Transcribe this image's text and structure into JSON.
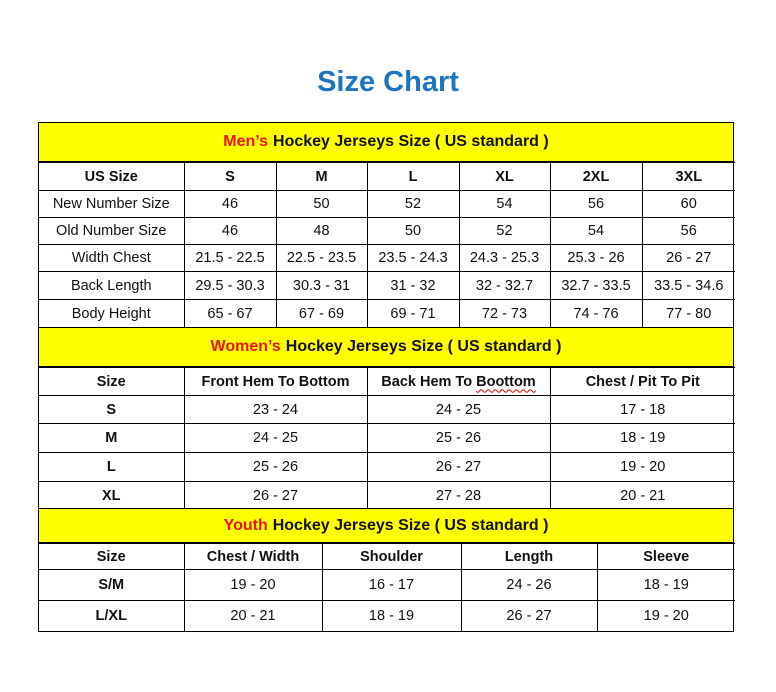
{
  "title": "Size Chart",
  "colors": {
    "title": "#1f74bf",
    "header_bg": "#ffff00",
    "accent": "#e8141b"
  },
  "men": {
    "accent": "Men’s",
    "heading": "Hockey Jerseys Size ( US standard )",
    "columns": [
      "US Size",
      "S",
      "M",
      "L",
      "XL",
      "2XL",
      "3XL"
    ],
    "rows": [
      [
        "New Number Size",
        "46",
        "50",
        "52",
        "54",
        "56",
        "60"
      ],
      [
        "Old Number Size",
        "46",
        "48",
        "50",
        "52",
        "54",
        "56"
      ],
      [
        "Width Chest",
        "21.5 - 22.5",
        "22.5 - 23.5",
        "23.5 - 24.3",
        "24.3 - 25.3",
        "25.3 - 26",
        "26 - 27"
      ],
      [
        "Back Length",
        "29.5 - 30.3",
        "30.3 - 31",
        "31 - 32",
        "32 - 32.7",
        "32.7 - 33.5",
        "33.5 - 34.6"
      ],
      [
        "Body Height",
        "65 - 67",
        "67 - 69",
        "69 - 71",
        "72 - 73",
        "74 - 76",
        "77 - 80"
      ]
    ]
  },
  "women": {
    "accent": "Women’s",
    "heading": "Hockey Jerseys Size ( US standard )",
    "columns": [
      "Size",
      "Front Hem To Bottom",
      "Back Hem To Boottom",
      "Chest / Pit To Pit"
    ],
    "rows": [
      [
        "S",
        "23 - 24",
        "24 - 25",
        "17 - 18"
      ],
      [
        "M",
        "24 - 25",
        "25 - 26",
        "18 - 19"
      ],
      [
        "L",
        "25 - 26",
        "26 - 27",
        "19 - 20"
      ],
      [
        "XL",
        "26 - 27",
        "27 - 28",
        "20 - 21"
      ]
    ]
  },
  "youth": {
    "accent": "Youth",
    "heading": "Hockey Jerseys Size ( US standard )",
    "columns": [
      "Size",
      "Chest / Width",
      "Shoulder",
      "Length",
      "Sleeve"
    ],
    "rows": [
      [
        "S/M",
        "19 - 20",
        "16 - 17",
        "24 - 26",
        "18 - 19"
      ],
      [
        "L/XL",
        "20 - 21",
        "18 - 19",
        "26 - 27",
        "19 - 20"
      ]
    ]
  }
}
